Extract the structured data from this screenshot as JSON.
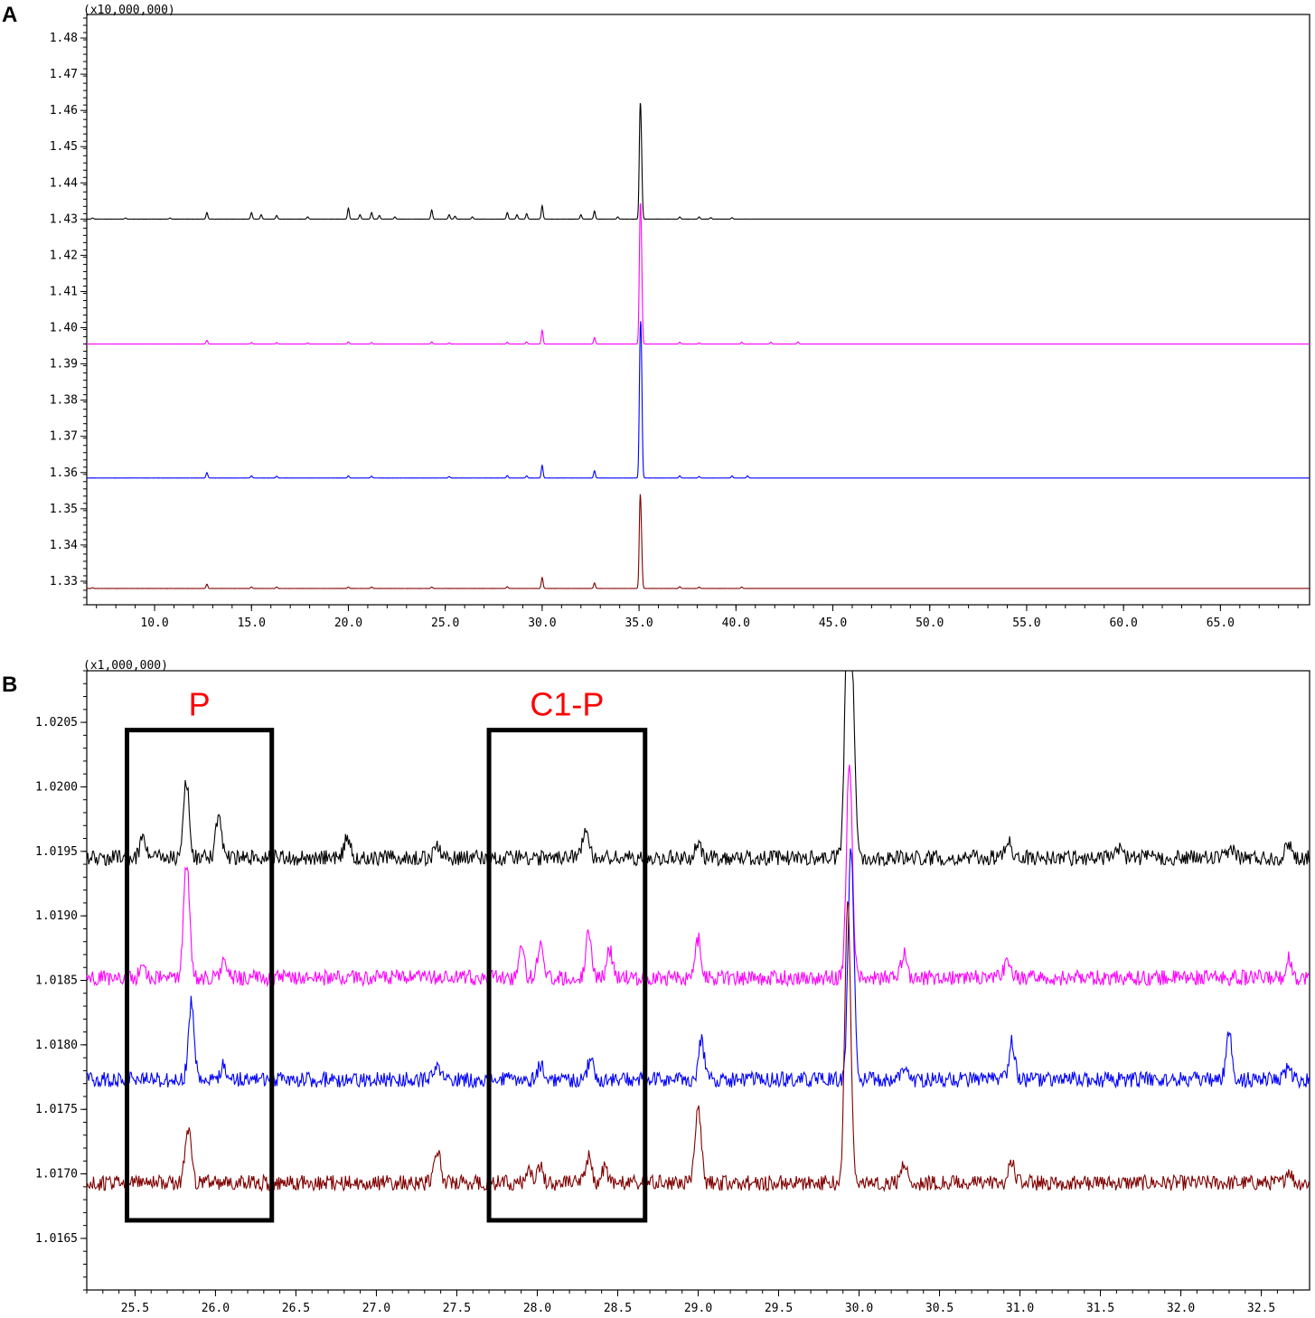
{
  "panels": [
    {
      "label": "A",
      "multiplier_label": "(x10,000,000)",
      "chart_data": {
        "type": "line",
        "xlim": [
          6.5,
          69.6
        ],
        "ylim": [
          1.3235,
          1.4865
        ],
        "x_ticks": [
          10.0,
          15.0,
          20.0,
          25.0,
          30.0,
          35.0,
          40.0,
          45.0,
          50.0,
          55.0,
          60.0,
          65.0
        ],
        "x_tick_labels": [
          "10.0",
          "15.0",
          "20.0",
          "25.0",
          "30.0",
          "35.0",
          "40.0",
          "45.0",
          "50.0",
          "55.0",
          "60.0",
          "65.0"
        ],
        "y_ticks": [
          1.33,
          1.34,
          1.35,
          1.36,
          1.37,
          1.38,
          1.39,
          1.4,
          1.41,
          1.42,
          1.43,
          1.44,
          1.45,
          1.46,
          1.47,
          1.48
        ],
        "y_tick_labels": [
          "1.33",
          "1.34",
          "1.35",
          "1.36",
          "1.37",
          "1.38",
          "1.39",
          "1.40",
          "1.41",
          "1.42",
          "1.43",
          "1.44",
          "1.45",
          "1.46",
          "1.47",
          "1.48"
        ],
        "series": [
          {
            "color": "#000000",
            "baseline": 1.43,
            "end_x": 69.6,
            "peaks": [
              [
                6.8,
                0.0003
              ],
              [
                8.5,
                0.0003
              ],
              [
                10.8,
                0.0003
              ],
              [
                12.7,
                0.0018
              ],
              [
                15.0,
                0.0018
              ],
              [
                15.5,
                0.0012
              ],
              [
                16.3,
                0.001
              ],
              [
                17.9,
                0.0006
              ],
              [
                20.0,
                0.003
              ],
              [
                20.6,
                0.0012
              ],
              [
                21.2,
                0.0018
              ],
              [
                21.6,
                0.001
              ],
              [
                22.4,
                0.0006
              ],
              [
                24.3,
                0.0025
              ],
              [
                25.2,
                0.0012
              ],
              [
                25.5,
                0.0008
              ],
              [
                26.4,
                0.0006
              ],
              [
                28.2,
                0.0018
              ],
              [
                28.7,
                0.0012
              ],
              [
                29.2,
                0.0015
              ],
              [
                30.0,
                0.0037
              ],
              [
                32.0,
                0.0012
              ],
              [
                32.7,
                0.0022
              ],
              [
                33.9,
                0.0006
              ],
              [
                35.05,
                0.0262
              ],
              [
                35.12,
                0.0157
              ],
              [
                37.1,
                0.0006
              ],
              [
                38.1,
                0.0006
              ],
              [
                38.7,
                0.0004
              ],
              [
                39.8,
                0.0004
              ]
            ]
          },
          {
            "color": "#ff00ff",
            "baseline": 1.3955,
            "end_x": 69.6,
            "peaks": [
              [
                12.7,
                0.001
              ],
              [
                15.0,
                0.0004
              ],
              [
                16.3,
                0.0004
              ],
              [
                17.9,
                0.0003
              ],
              [
                20.0,
                0.0006
              ],
              [
                21.2,
                0.0004
              ],
              [
                24.3,
                0.0006
              ],
              [
                25.2,
                0.0003
              ],
              [
                28.2,
                0.0005
              ],
              [
                29.2,
                0.0006
              ],
              [
                30.0,
                0.0038
              ],
              [
                32.7,
                0.0018
              ],
              [
                35.05,
                0.03
              ],
              [
                35.12,
                0.022
              ],
              [
                37.1,
                0.0005
              ],
              [
                38.1,
                0.0003
              ],
              [
                40.3,
                0.0005
              ],
              [
                41.8,
                0.0005
              ],
              [
                43.2,
                0.0006
              ]
            ]
          },
          {
            "color": "#0000ff",
            "baseline": 1.3585,
            "end_x": 69.6,
            "peaks": [
              [
                12.7,
                0.0015
              ],
              [
                15.0,
                0.0006
              ],
              [
                16.3,
                0.0005
              ],
              [
                20.0,
                0.0006
              ],
              [
                21.2,
                0.0005
              ],
              [
                25.2,
                0.0004
              ],
              [
                28.2,
                0.0007
              ],
              [
                29.2,
                0.0006
              ],
              [
                30.0,
                0.0035
              ],
              [
                32.7,
                0.002
              ],
              [
                35.05,
                0.0305
              ],
              [
                35.12,
                0.028
              ],
              [
                37.1,
                0.0006
              ],
              [
                38.1,
                0.0004
              ],
              [
                39.8,
                0.0006
              ],
              [
                40.6,
                0.0006
              ]
            ]
          },
          {
            "color": "#800000",
            "baseline": 1.328,
            "end_x": 69.6,
            "peaks": [
              [
                6.8,
                0.0002
              ],
              [
                12.7,
                0.0012
              ],
              [
                15.0,
                0.0004
              ],
              [
                16.3,
                0.0004
              ],
              [
                20.0,
                0.0004
              ],
              [
                21.2,
                0.0004
              ],
              [
                24.3,
                0.0004
              ],
              [
                28.2,
                0.0005
              ],
              [
                30.0,
                0.003
              ],
              [
                32.7,
                0.0015
              ],
              [
                35.05,
                0.022
              ],
              [
                35.12,
                0.011
              ],
              [
                37.1,
                0.0005
              ],
              [
                38.1,
                0.0004
              ],
              [
                40.3,
                0.0004
              ]
            ]
          }
        ]
      }
    },
    {
      "label": "B",
      "multiplier_label": "(x1,000,000)",
      "chart_data": {
        "type": "line",
        "xlim": [
          25.2,
          32.8
        ],
        "ylim": [
          1.0161,
          1.0209
        ],
        "x_ticks": [
          25.5,
          26.0,
          26.5,
          27.0,
          27.5,
          28.0,
          28.5,
          29.0,
          29.5,
          30.0,
          30.5,
          31.0,
          31.5,
          32.0,
          32.5
        ],
        "x_tick_labels": [
          "25.5",
          "26.0",
          "26.5",
          "27.0",
          "27.5",
          "28.0",
          "28.5",
          "29.0",
          "29.5",
          "30.0",
          "30.5",
          "31.0",
          "31.5",
          "32.0",
          "32.5"
        ],
        "y_ticks": [
          1.0165,
          1.017,
          1.0175,
          1.018,
          1.0185,
          1.019,
          1.0195,
          1.02,
          1.0205
        ],
        "y_tick_labels": [
          "1.0165",
          "1.0170",
          "1.0175",
          "1.0180",
          "1.0185",
          "1.0190",
          "1.0195",
          "1.0200",
          "1.0205"
        ],
        "series": [
          {
            "color": "#000000",
            "baseline": 1.01945,
            "noise": 6e-05,
            "peaks": [
              [
                25.55,
                0.00015
              ],
              [
                25.82,
                0.0006
              ],
              [
                26.02,
                0.00035
              ],
              [
                26.82,
                0.00017
              ],
              [
                27.38,
                0.0001
              ],
              [
                28.3,
                0.00025
              ],
              [
                29.0,
                0.0001
              ],
              [
                29.93,
                0.002
              ],
              [
                29.96,
                0.001
              ],
              [
                30.93,
                0.00015
              ],
              [
                31.62,
                8e-05
              ],
              [
                32.32,
                8e-05
              ],
              [
                32.67,
                0.00012
              ]
            ]
          },
          {
            "color": "#ff00ff",
            "baseline": 1.01852,
            "noise": 6e-05,
            "peaks": [
              [
                25.55,
                0.0001
              ],
              [
                25.82,
                0.0009
              ],
              [
                26.05,
                0.00012
              ],
              [
                27.9,
                0.00022
              ],
              [
                28.02,
                0.00028
              ],
              [
                28.32,
                0.00035
              ],
              [
                28.45,
                0.00022
              ],
              [
                29.0,
                0.0003
              ],
              [
                29.94,
                0.0017
              ],
              [
                30.28,
                0.00018
              ],
              [
                30.92,
                0.00012
              ],
              [
                32.67,
                0.00015
              ]
            ]
          },
          {
            "color": "#0000ff",
            "baseline": 1.01773,
            "noise": 6e-05,
            "peaks": [
              [
                25.85,
                0.0006
              ],
              [
                26.05,
                0.00012
              ],
              [
                27.38,
                0.0001
              ],
              [
                28.02,
                0.00012
              ],
              [
                28.33,
                0.00015
              ],
              [
                29.02,
                0.0003
              ],
              [
                29.95,
                0.0018
              ],
              [
                30.28,
                0.0001
              ],
              [
                30.95,
                0.0003
              ],
              [
                32.3,
                0.00035
              ],
              [
                32.67,
                0.0001
              ]
            ]
          },
          {
            "color": "#800000",
            "baseline": 1.01693,
            "noise": 6e-05,
            "peaks": [
              [
                25.83,
                0.00043
              ],
              [
                27.38,
                0.00027
              ],
              [
                27.95,
                0.0001
              ],
              [
                28.02,
                0.00012
              ],
              [
                28.32,
                0.0002
              ],
              [
                28.42,
                0.00012
              ],
              [
                29.0,
                0.0006
              ],
              [
                29.93,
                0.0022
              ],
              [
                30.28,
                0.00015
              ],
              [
                30.95,
                0.00017
              ],
              [
                32.67,
                0.0001
              ]
            ]
          }
        ],
        "annotations": [
          {
            "text": "P",
            "x0": 25.45,
            "x1": 26.35,
            "y0": 1.01664,
            "y1": 1.02044
          },
          {
            "text": "C1-P",
            "x0": 27.7,
            "x1": 28.67,
            "y0": 1.01664,
            "y1": 1.02044
          }
        ]
      }
    }
  ]
}
